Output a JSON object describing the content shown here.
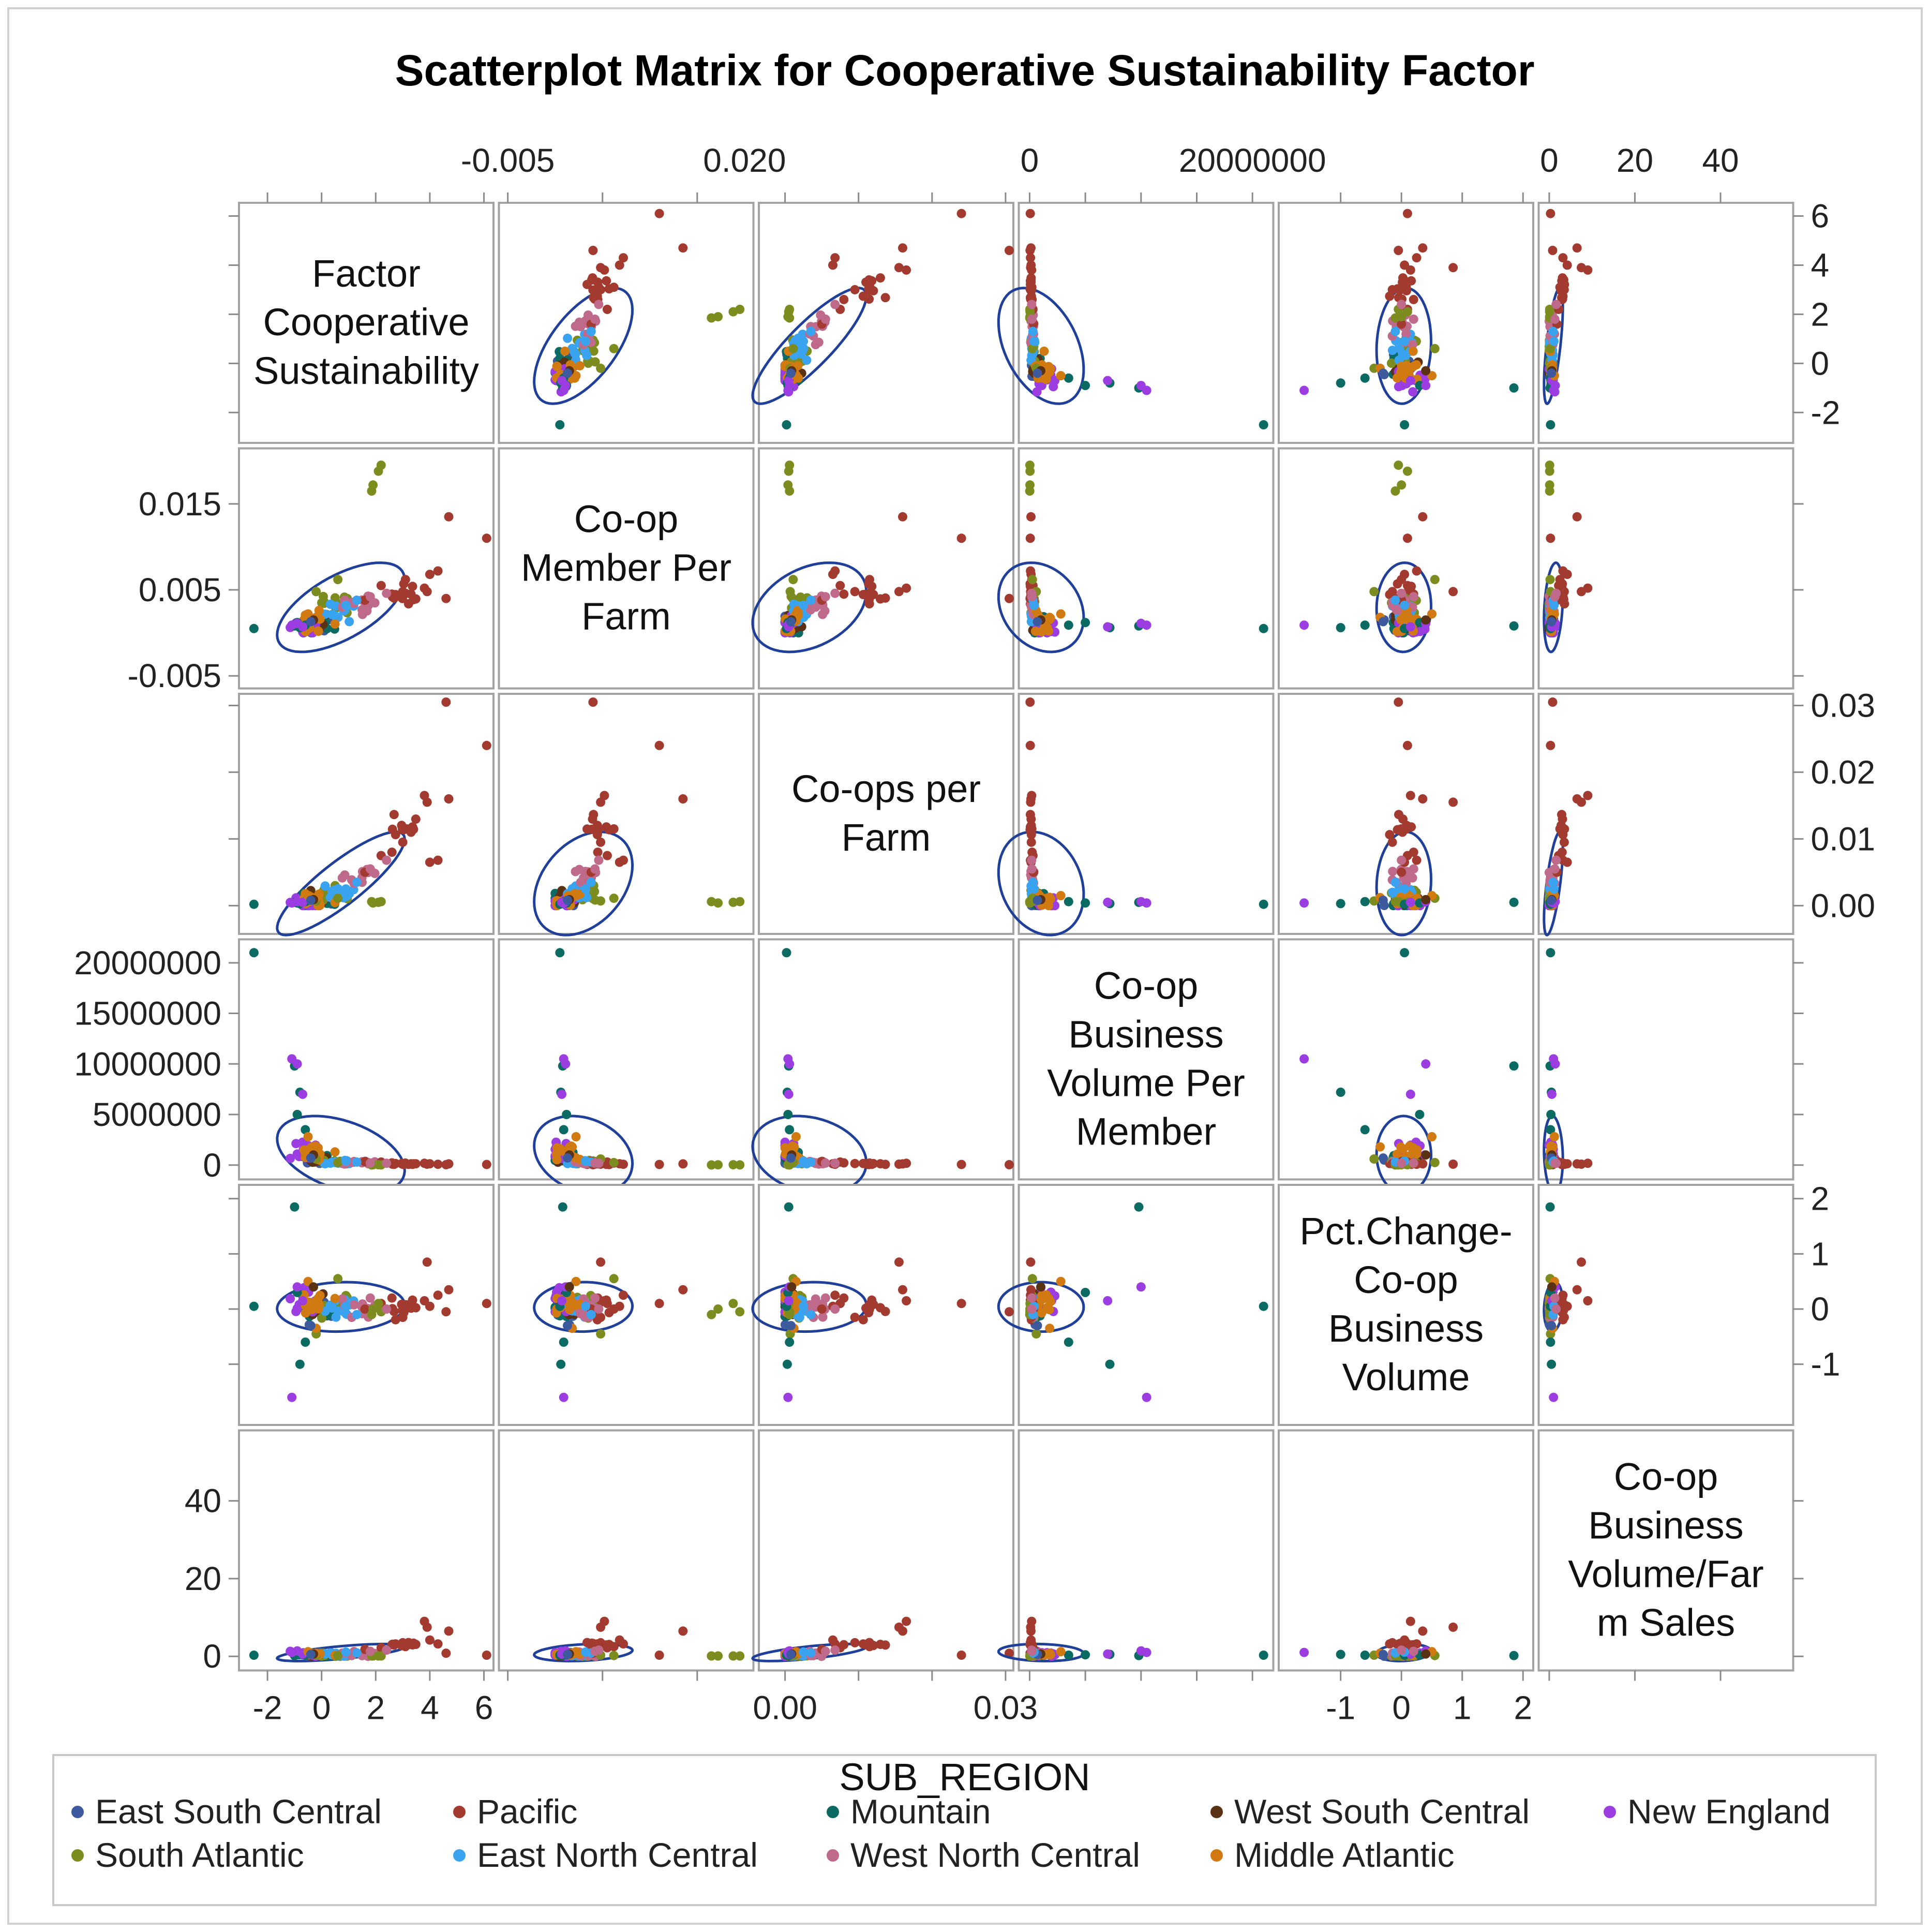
{
  "chart_data": {
    "type": "scatter",
    "title": "Scatterplot Matrix for Cooperative Sustainability Factor",
    "variables": [
      {
        "label": "Factor Cooperative Sustainability",
        "lines": [
          "Factor",
          "Cooperative",
          "Sustainability"
        ],
        "range": [
          -2.9,
          6.2
        ],
        "ticks": [
          -2,
          0,
          2,
          4,
          6
        ],
        "tick_labels": [
          "-2",
          "0",
          "2",
          "4",
          "6"
        ]
      },
      {
        "label": "Co-op Member Per Farm",
        "lines": [
          "Co-op",
          "Member Per",
          "Farm"
        ],
        "range": [
          -0.0055,
          0.0205
        ],
        "ticks": [
          -0.005,
          0.005,
          0.015
        ],
        "tick_labels": [
          "-0.005",
          "0.005",
          "0.015"
        ],
        "top_ticks": [
          -0.005,
          0.02
        ],
        "top_tick_labels": [
          "-0.005",
          "0.020"
        ]
      },
      {
        "label": "Co-ops per Farm",
        "lines": [
          "Co-ops per",
          "Farm"
        ],
        "range": [
          -0.003,
          0.0305
        ],
        "ticks": [
          0.0,
          0.01,
          0.02,
          0.03
        ],
        "tick_labels": [
          "0.00",
          "0.01",
          "0.02",
          "0.03"
        ],
        "bottom_ticks": [
          0.0,
          0.03
        ],
        "bottom_tick_labels": [
          "0.00",
          "0.03"
        ]
      },
      {
        "label": "Co-op Business Volume Per Member",
        "lines": [
          "Co-op",
          "Business",
          "Volume Per",
          "Member"
        ],
        "range": [
          -600000,
          21500000
        ],
        "ticks": [
          0,
          5000000,
          10000000,
          15000000,
          20000000
        ],
        "tick_labels": [
          "0",
          "5000000",
          "10000000",
          "15000000",
          "20000000"
        ],
        "top_ticks": [
          0,
          20000000
        ],
        "top_tick_labels": [
          "0",
          "20000000"
        ]
      },
      {
        "label": "Pct.Change-Co-op Business Volume",
        "lines": [
          "Pct.Change-",
          "Co-op",
          "Business",
          "Volume"
        ],
        "range": [
          -1.95,
          2.1
        ],
        "ticks": [
          -1,
          0,
          1,
          2
        ],
        "tick_labels": [
          "-1",
          "0",
          "1",
          "2"
        ]
      },
      {
        "label": "Co-op Business Volume/Farm Sales",
        "lines": [
          "Co-op",
          "Business",
          "Volume/Far",
          "m Sales"
        ],
        "range": [
          -1.5,
          56
        ],
        "ticks": [
          0,
          20,
          40
        ],
        "tick_labels": [
          "0",
          "20",
          "40"
        ]
      }
    ],
    "group_variable": "SUB_REGION",
    "groups": [
      {
        "name": "East South Central",
        "color": "#3d5a9e",
        "center": [
          0.0,
          0.0011,
          0.0008,
          400000,
          0.0,
          0.4
        ]
      },
      {
        "name": "Pacific",
        "color": "#a33a2f",
        "center": [
          3.0,
          0.0045,
          0.012,
          100000,
          0.05,
          3.0
        ]
      },
      {
        "name": "Mountain",
        "color": "#0b6b63",
        "center": [
          -0.3,
          0.0008,
          0.0004,
          800000,
          0.0,
          0.3
        ]
      },
      {
        "name": "West South Central",
        "color": "#5a3112",
        "center": [
          -0.2,
          0.0012,
          0.0007,
          500000,
          0.0,
          0.4
        ]
      },
      {
        "name": "New England",
        "color": "#9b3de0",
        "center": [
          -0.6,
          0.0009,
          0.0005,
          1500000,
          0.1,
          0.6
        ]
      },
      {
        "name": "South Atlantic",
        "color": "#7d8c1e",
        "center": [
          0.4,
          0.0035,
          0.0012,
          300000,
          0.0,
          0.3
        ]
      },
      {
        "name": "East North Central",
        "color": "#39a3f0",
        "center": [
          0.6,
          0.0025,
          0.0018,
          300000,
          0.0,
          0.5
        ]
      },
      {
        "name": "West North Central",
        "color": "#c06a8b",
        "center": [
          1.2,
          0.0032,
          0.0045,
          250000,
          0.05,
          0.7
        ]
      },
      {
        "name": "Middle Atlantic",
        "color": "#d27a12",
        "center": [
          -0.3,
          0.0012,
          0.0011,
          1200000,
          0.05,
          0.5
        ]
      }
    ],
    "points": [
      {
        "g": 1,
        "v": [
          6.1,
          0.011,
          0.024,
          60000,
          0.1,
          0.3
        ]
      },
      {
        "g": 1,
        "v": [
          4.7,
          0.0135,
          0.016,
          120000,
          0.35,
          6.5
        ]
      },
      {
        "g": 1,
        "v": [
          4.6,
          0.004,
          0.0305,
          40000,
          -0.05,
          0.8
        ]
      },
      {
        "g": 1,
        "v": [
          3.9,
          0.0048,
          0.0155,
          90000,
          0.85,
          7.5
        ]
      },
      {
        "g": 1,
        "v": [
          3.8,
          0.0052,
          0.0165,
          180000,
          0.15,
          9.0
        ]
      },
      {
        "g": 1,
        "v": [
          3.1,
          0.0062,
          0.0115,
          200000,
          0.0,
          2.5
        ]
      },
      {
        "g": 1,
        "v": [
          3.0,
          0.0048,
          0.0095,
          150000,
          -0.15,
          3.5
        ]
      },
      {
        "g": 1,
        "v": [
          2.6,
          0.0045,
          0.008,
          220000,
          0.2,
          3.0
        ]
      },
      {
        "g": 1,
        "v": [
          4.0,
          0.0068,
          0.0065,
          130000,
          0.05,
          4.2
        ]
      },
      {
        "g": 1,
        "v": [
          2.2,
          0.0055,
          0.0075,
          300000,
          0.1,
          2.2
        ]
      },
      {
        "g": 1,
        "v": [
          1.6,
          0.0038,
          0.005,
          350000,
          0.0,
          1.8
        ]
      },
      {
        "g": 1,
        "v": [
          4.3,
          0.0072,
          0.0068,
          80000,
          0.25,
          3.2
        ]
      },
      {
        "g": 5,
        "v": [
          2.2,
          0.0195,
          0.0006,
          20000,
          -0.05,
          0.1
        ]
      },
      {
        "g": 5,
        "v": [
          2.1,
          0.0188,
          0.0005,
          35000,
          0.1,
          0.1
        ]
      },
      {
        "g": 5,
        "v": [
          1.9,
          0.0172,
          0.0004,
          28000,
          0.0,
          0.1
        ]
      },
      {
        "g": 5,
        "v": [
          1.85,
          0.0165,
          0.0006,
          15000,
          -0.1,
          0.1
        ]
      },
      {
        "g": 5,
        "v": [
          0.6,
          0.0062,
          0.0011,
          250000,
          0.55,
          0.2
        ]
      },
      {
        "g": 5,
        "v": [
          -0.2,
          0.0048,
          0.0007,
          600000,
          -0.45,
          0.3
        ]
      },
      {
        "g": 2,
        "v": [
          -2.5,
          0.0005,
          0.0002,
          21000000,
          0.05,
          0.3
        ]
      },
      {
        "g": 2,
        "v": [
          -1.0,
          0.0008,
          0.0005,
          9800000,
          1.85,
          0.2
        ]
      },
      {
        "g": 2,
        "v": [
          -0.8,
          0.0006,
          0.0003,
          7200000,
          -1.0,
          0.5
        ]
      },
      {
        "g": 2,
        "v": [
          -0.9,
          0.0012,
          0.0004,
          5000000,
          0.3,
          0.4
        ]
      },
      {
        "g": 2,
        "v": [
          -0.6,
          0.0009,
          0.0006,
          3500000,
          -0.6,
          0.3
        ]
      },
      {
        "g": 4,
        "v": [
          -1.1,
          0.0009,
          0.0004,
          10500000,
          -1.6,
          1.0
        ]
      },
      {
        "g": 4,
        "v": [
          -0.9,
          0.0011,
          0.0006,
          10000000,
          0.4,
          1.4
        ]
      },
      {
        "g": 4,
        "v": [
          -0.7,
          0.0007,
          0.0005,
          7000000,
          0.15,
          0.6
        ]
      },
      {
        "g": 8,
        "v": [
          -0.5,
          0.0022,
          0.0015,
          2800000,
          0.5,
          1.2
        ]
      },
      {
        "g": 8,
        "v": [
          -0.2,
          0.0018,
          0.0012,
          1800000,
          -0.35,
          0.8
        ]
      },
      {
        "g": 3,
        "v": [
          -0.3,
          0.0015,
          0.0009,
          1000000,
          0.4,
          0.6
        ]
      },
      {
        "g": 0,
        "v": [
          -0.4,
          0.0013,
          0.0008,
          700000,
          -0.3,
          0.5
        ]
      },
      {
        "g": 6,
        "v": [
          0.9,
          0.0032,
          0.0025,
          400000,
          0.05,
          1.1
        ]
      },
      {
        "g": 6,
        "v": [
          1.3,
          0.0038,
          0.0035,
          300000,
          -0.1,
          0.9
        ]
      },
      {
        "g": 7,
        "v": [
          1.8,
          0.0042,
          0.0055,
          200000,
          0.2,
          1.3
        ]
      },
      {
        "g": 7,
        "v": [
          2.4,
          0.0046,
          0.0068,
          180000,
          0.0,
          1.6
        ]
      }
    ],
    "ellipse": {
      "probability": 0.95,
      "color": "#1f3f99"
    },
    "legend": {
      "title": "SUB_REGION",
      "position": "bottom"
    },
    "xlabel": "",
    "ylabel": ""
  }
}
